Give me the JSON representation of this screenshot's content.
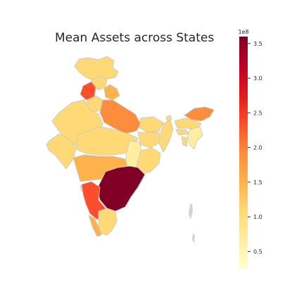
{
  "title": "Mean Assets across States",
  "colorbar": {
    "scale_label": "1e8",
    "ticks": [
      "0.5",
      "1.0",
      "1.5",
      "2.0",
      "2.5",
      "3.0",
      "3.5"
    ],
    "tick_values": [
      0.5,
      1.0,
      1.5,
      2.0,
      2.5,
      3.0,
      3.5
    ],
    "min": 0.25,
    "max": 3.6,
    "cmap": [
      "#ffffcc",
      "#ffeda0",
      "#fed976",
      "#feb24c",
      "#fd8d3c",
      "#fc4e2a",
      "#e31a1c",
      "#bd0026",
      "#800026"
    ]
  },
  "colors": {
    "border": "#c8c8c8",
    "no_data": "#d3d3d3"
  }
}
